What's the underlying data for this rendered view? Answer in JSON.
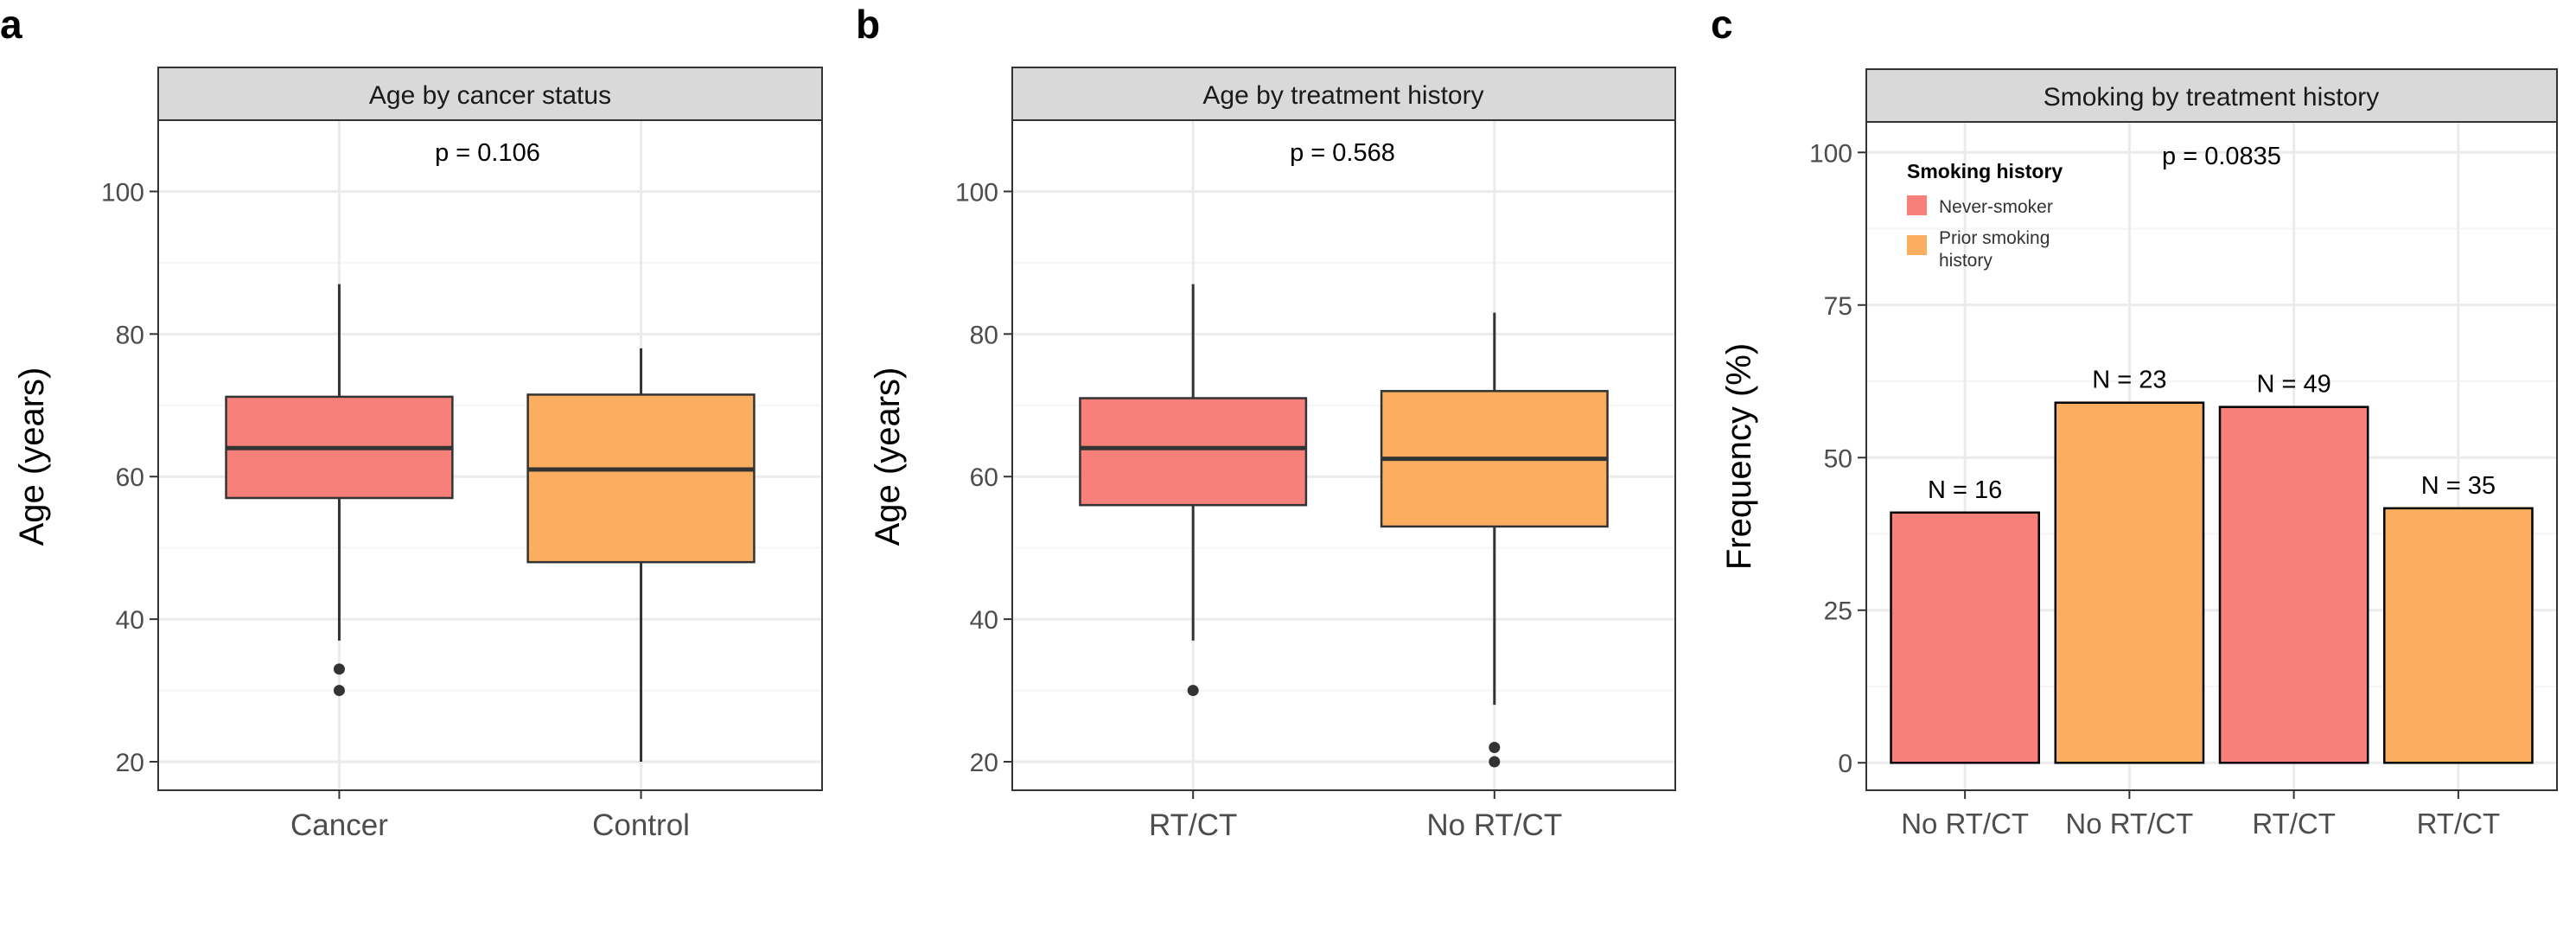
{
  "colors": {
    "salmon": "#F8807A",
    "orange": "#FBAE5F",
    "strip_bg": "#D9D9D9",
    "grid_major": "#EBEBEB",
    "grid_minor": "#F5F5F5"
  },
  "chart_data": [
    {
      "type": "box",
      "panel_label": "a",
      "title": "Age by cancer status",
      "ylabel": "Age (years)",
      "ylim": [
        16,
        110
      ],
      "yticks": [
        20,
        40,
        60,
        80,
        100
      ],
      "annotation": "p = 0.106",
      "categories": [
        "Cancer",
        "Control"
      ],
      "boxes": [
        {
          "label": "Cancer",
          "color": "salmon",
          "q1": 57,
          "median": 64,
          "q3": 71.2,
          "whisker_low": 37,
          "whisker_high": 87,
          "outliers": [
            33,
            30
          ]
        },
        {
          "label": "Control",
          "color": "orange",
          "q1": 48,
          "median": 61,
          "q3": 71.5,
          "whisker_low": 20,
          "whisker_high": 78,
          "outliers": []
        }
      ]
    },
    {
      "type": "box",
      "panel_label": "b",
      "title": "Age by treatment history",
      "ylabel": "Age (years)",
      "ylim": [
        16,
        110
      ],
      "yticks": [
        20,
        40,
        60,
        80,
        100
      ],
      "annotation": "p = 0.568",
      "categories": [
        "RT/CT",
        "No RT/CT"
      ],
      "boxes": [
        {
          "label": "RT/CT",
          "color": "salmon",
          "q1": 56,
          "median": 64,
          "q3": 71,
          "whisker_low": 37,
          "whisker_high": 87,
          "outliers": [
            30
          ]
        },
        {
          "label": "No RT/CT",
          "color": "orange",
          "q1": 53,
          "median": 62.5,
          "q3": 72,
          "whisker_low": 28,
          "whisker_high": 83,
          "outliers": [
            22,
            20
          ]
        }
      ]
    },
    {
      "type": "bar",
      "panel_label": "c",
      "title": "Smoking by treatment history",
      "ylabel": "Frequency (%)",
      "ylim": [
        -4.5,
        105
      ],
      "yticks": [
        0,
        25,
        50,
        75,
        100
      ],
      "annotation": "p = 0.0835",
      "categories": [
        "No RT/CT",
        "No RT/CT",
        "RT/CT",
        "RT/CT"
      ],
      "values": [
        41,
        59,
        58.3,
        41.7
      ],
      "bar_colors": [
        "salmon",
        "orange",
        "salmon",
        "orange"
      ],
      "bar_labels": [
        "N = 16",
        "N = 23",
        "N = 49",
        "N = 35"
      ],
      "legend": {
        "title": "Smoking history",
        "position": "top-left",
        "items": [
          {
            "label_lines": [
              "Never-smoker"
            ],
            "color": "salmon"
          },
          {
            "label_lines": [
              "Prior smoking",
              "history"
            ],
            "color": "orange"
          }
        ]
      }
    }
  ]
}
